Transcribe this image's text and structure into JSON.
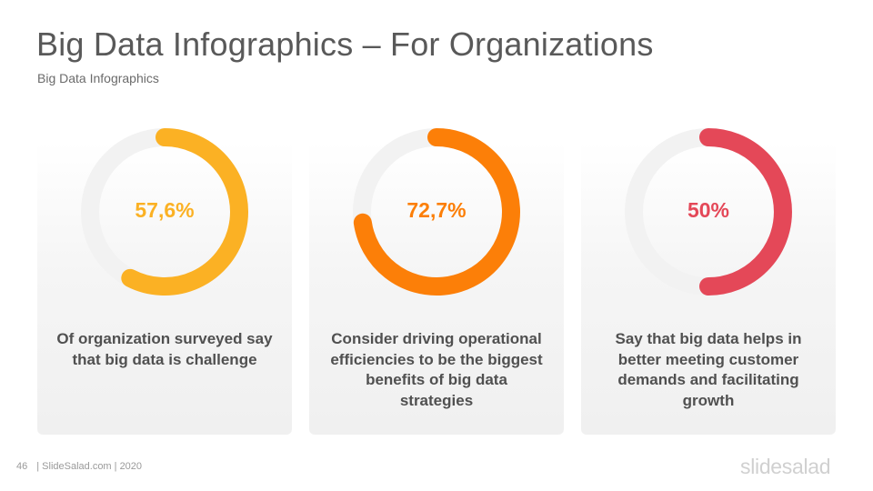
{
  "header": {
    "title": "Big Data Infographics – For Organizations",
    "subtitle": "Big Data Infographics"
  },
  "cards": [
    {
      "value_label": "57,6%",
      "fraction": 0.576,
      "color": "#FBB124",
      "description": "Of organization surveyed say that big data is challenge"
    },
    {
      "value_label": "72,7%",
      "fraction": 0.727,
      "color": "#FC7F08",
      "description": "Consider driving operational efficiencies to be the biggest benefits of big data strategies"
    },
    {
      "value_label": "50%",
      "fraction": 0.5,
      "color": "#E44858",
      "description": "Say that big data helps in better meeting customer demands and facilitating growth"
    }
  ],
  "track_color": "#F2F2F2",
  "footer": {
    "page_number": "46",
    "text": "| SlideSalad.com | 2020",
    "logo": "slidesalad"
  }
}
